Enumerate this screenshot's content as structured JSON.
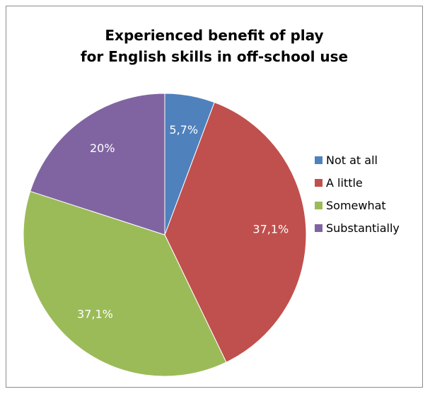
{
  "chart_data": {
    "type": "pie",
    "title": [
      "Experienced benefit of play",
      "for English skills in off-school use"
    ],
    "slices": [
      {
        "name": "Not at all",
        "value": 5.7,
        "label": "5,7%",
        "color": "#4F81BD"
      },
      {
        "name": "A little",
        "value": 37.1,
        "label": "37,1%",
        "color": "#C0504D"
      },
      {
        "name": "Somewhat",
        "value": 37.1,
        "label": "37,1%",
        "color": "#9BBB59"
      },
      {
        "name": "Substantially",
        "value": 20.0,
        "label": "20%",
        "color": "#8064A2"
      }
    ],
    "start_angle": "12 o'clock",
    "direction": "clockwise",
    "legend_position": "right"
  }
}
